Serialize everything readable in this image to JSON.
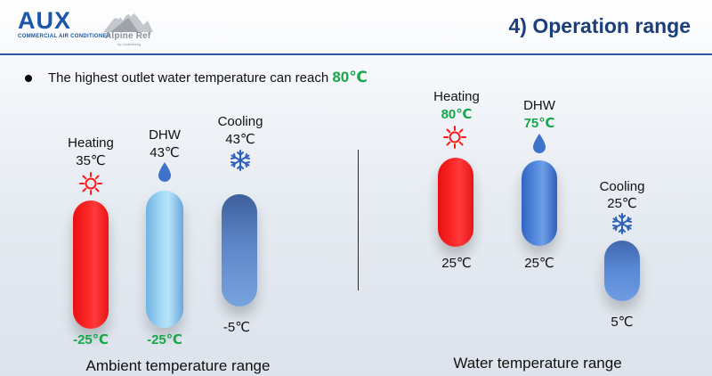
{
  "header": {
    "brand": "AUX",
    "brand_sub": "COMMERCIAL AIR CONDITIONER",
    "partner": "Alpine Ref",
    "partner_sub": "by Leskenburg",
    "title": "4) Operation range",
    "accent": "#1b3f78"
  },
  "bullet": {
    "text": "The highest outlet water temperature can reach ",
    "highlight": "80℃",
    "highlight_color": "#16a84a"
  },
  "ambient": {
    "section_label": "Ambient temperature range",
    "items": [
      {
        "name": "Heating",
        "top": "35℃",
        "bottom": "-25℃",
        "icon": "sun-icon"
      },
      {
        "name": "DHW",
        "top": "43℃",
        "bottom": "-25℃",
        "icon": "water-drop-icon"
      },
      {
        "name": "Cooling",
        "top": "43℃",
        "bottom": "-5℃",
        "icon": "snowflake-icon"
      }
    ]
  },
  "water": {
    "section_label": "Water temperature range",
    "items": [
      {
        "name": "Heating",
        "top": "80℃",
        "bottom": "25℃",
        "icon": "sun-icon"
      },
      {
        "name": "DHW",
        "top": "75℃",
        "bottom": "25℃",
        "icon": "water-drop-icon"
      },
      {
        "name": "Cooling",
        "top": "25℃",
        "bottom": "5℃",
        "icon": "snowflake-icon"
      }
    ]
  },
  "colors": {
    "heating": "#ff1f1f",
    "dhw_ambient": "#9fd4f3",
    "dhw_water": "#4f86dc",
    "cooling": "#4d78c0",
    "highlight_green": "#16a84a"
  }
}
